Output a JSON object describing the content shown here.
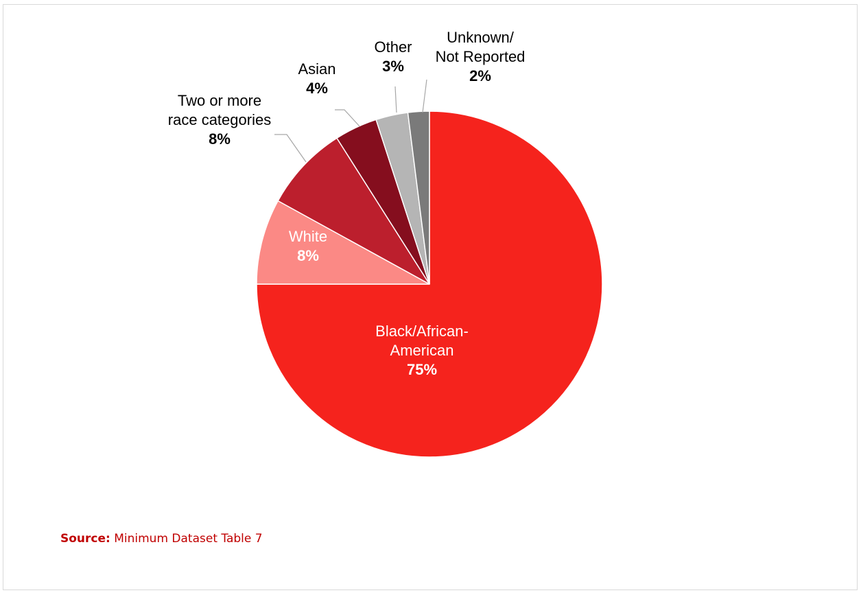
{
  "chart_data": {
    "type": "pie",
    "slices": [
      {
        "label": [
          "Black/African-",
          "American"
        ],
        "value": 75,
        "value_label": "75%",
        "color": "#f5231d",
        "label_color": "#ffffff"
      },
      {
        "label": [
          "White"
        ],
        "value": 8,
        "value_label": "8%",
        "color": "#fb8985",
        "label_color": "#ffffff"
      },
      {
        "label": [
          "Two or more",
          "race categories"
        ],
        "value": 8,
        "value_label": "8%",
        "color": "#bc1f2d",
        "label_color": "#000000"
      },
      {
        "label": [
          "Asian"
        ],
        "value": 4,
        "value_label": "4%",
        "color": "#850e1e",
        "label_color": "#000000"
      },
      {
        "label": [
          "Other"
        ],
        "value": 3,
        "value_label": "3%",
        "color": "#b5b5b5",
        "label_color": "#000000"
      },
      {
        "label": [
          "Unknown/",
          "Not Reported"
        ],
        "value": 2,
        "value_label": "2%",
        "color": "#7a7a7a",
        "label_color": "#000000"
      }
    ]
  },
  "source": {
    "label": "Source:",
    "text": " Minimum Dataset Table 7"
  }
}
